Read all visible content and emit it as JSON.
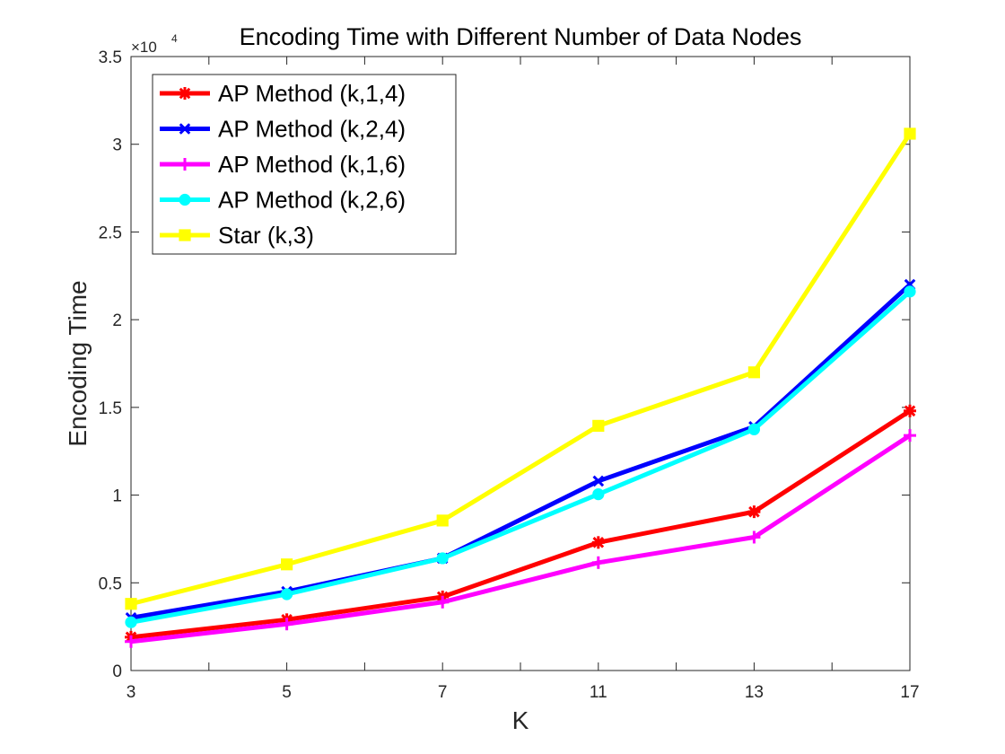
{
  "chart_data": {
    "type": "line",
    "title": "Encoding Time with Different Number of Data Nodes",
    "xlabel": "K",
    "ylabel": "Encoding Time",
    "y_exponent_label": "×10",
    "y_exponent_power": "4",
    "x_categories": [
      "3",
      "5",
      "7",
      "11",
      "13",
      "17"
    ],
    "y_ticks": [
      0,
      0.5,
      1,
      1.5,
      2,
      2.5,
      3,
      3.5
    ],
    "y_tick_labels": [
      "0",
      "0.5",
      "1",
      "1.5",
      "2",
      "2.5",
      "3",
      "3.5"
    ],
    "y_scale": 10000,
    "ylim": [
      0,
      35000
    ],
    "grid": false,
    "legend_position": "top-left",
    "series": [
      {
        "name": "AP Method (k,1,4)",
        "color": "#ff0000",
        "marker": "asterisk",
        "values": [
          1900,
          2900,
          4200,
          7300,
          9050,
          14800
        ]
      },
      {
        "name": "AP Method (k,2,4)",
        "color": "#0000ff",
        "marker": "x",
        "values": [
          3000,
          4500,
          6400,
          10800,
          13900,
          22000
        ]
      },
      {
        "name": "AP Method (k,1,6)",
        "color": "#ff00ff",
        "marker": "plus",
        "values": [
          1650,
          2650,
          3900,
          6150,
          7600,
          13400
        ]
      },
      {
        "name": "AP Method (k,2,6)",
        "color": "#00ffff",
        "marker": "circle",
        "values": [
          2750,
          4350,
          6400,
          10050,
          13750,
          21600
        ]
      },
      {
        "name": "Star (k,3)",
        "color": "#ffff00",
        "marker": "square",
        "values": [
          3800,
          6050,
          8550,
          13950,
          17000,
          30600
        ]
      }
    ]
  }
}
